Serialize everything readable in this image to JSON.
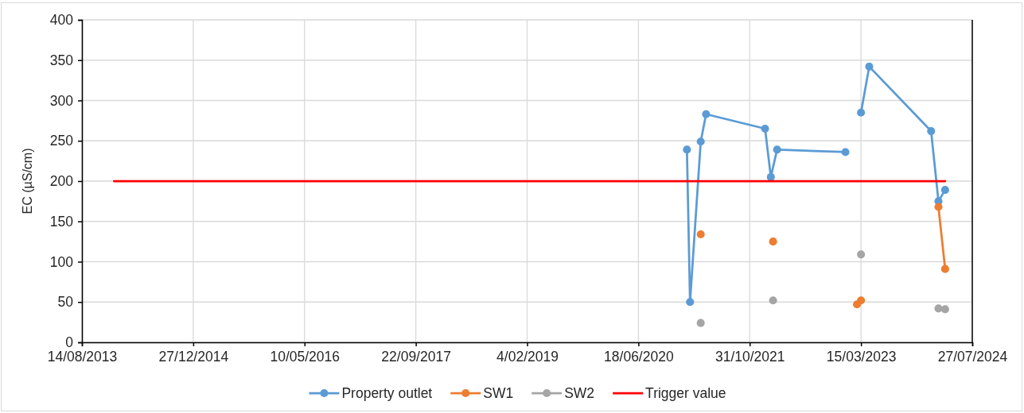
{
  "chart_data": {
    "type": "line",
    "ylabel": "EC (µS/cm)",
    "xlim": [
      "2013-08-14",
      "2024-07-27"
    ],
    "xticks": [
      {
        "value": "2013-08-14",
        "label": "14/08/2013"
      },
      {
        "value": "2014-12-27",
        "label": "27/12/2014"
      },
      {
        "value": "2016-05-10",
        "label": "10/05/2016"
      },
      {
        "value": "2017-09-22",
        "label": "22/09/2017"
      },
      {
        "value": "2019-02-04",
        "label": "4/02/2019"
      },
      {
        "value": "2020-06-18",
        "label": "18/06/2020"
      },
      {
        "value": "2021-10-31",
        "label": "31/10/2021"
      },
      {
        "value": "2023-03-15",
        "label": "15/03/2023"
      },
      {
        "value": "2024-07-27",
        "label": "27/07/2024"
      }
    ],
    "ylim": [
      0,
      400
    ],
    "yticks": [
      0,
      50,
      100,
      150,
      200,
      250,
      300,
      350,
      400
    ],
    "grid": true,
    "legend": "bottom",
    "marker": "circle",
    "series": [
      {
        "name": "Property outlet",
        "color": "#5b9bd5",
        "x": [
          "2021-01-22",
          "2021-02-05",
          "2021-03-25",
          "2021-04-18",
          "2022-01-08",
          "2022-02-03",
          "2022-03-03",
          "2023-01-04",
          "2023-02-25",
          "2023-03-15",
          "2023-04-21",
          "2024-01-24",
          "2024-02-26",
          "2024-03-27"
        ],
        "values": [
          239,
          50,
          249,
          283,
          265,
          205,
          239,
          236,
          null,
          285,
          342,
          262,
          175,
          189
        ]
      },
      {
        "name": "SW1",
        "color": "#ed7d31",
        "x": [
          "2021-03-25",
          "2021-04-18",
          "2022-02-13",
          "2023-01-04",
          "2023-02-25",
          "2023-03-15",
          "2023-04-21",
          "2024-02-26",
          "2024-03-27"
        ],
        "values": [
          134,
          null,
          125,
          null,
          47,
          52,
          null,
          168,
          91
        ]
      },
      {
        "name": "SW2",
        "color": "#a5a5a5",
        "type": "scatter",
        "x": [
          "2021-03-25",
          "2022-02-13",
          "2023-03-15",
          "2024-02-26",
          "2024-03-27"
        ],
        "values": [
          24,
          52,
          109,
          42,
          41
        ]
      },
      {
        "name": "Trigger value",
        "color": "#ff0000",
        "marker": "none",
        "x": [
          "2014-01-05",
          "2024-03-27"
        ],
        "values": [
          200,
          200
        ]
      }
    ]
  }
}
